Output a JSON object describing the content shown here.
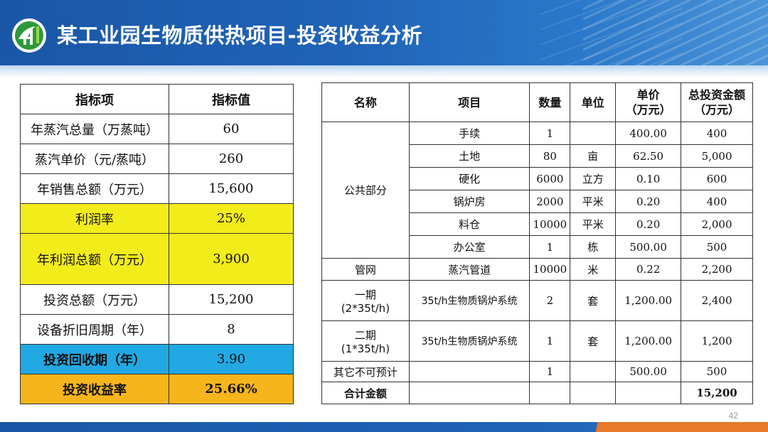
{
  "title": "某工业园生物质供热项目-投资收益分析",
  "page_number": "42",
  "colors": {
    "header_blue": "#1f63b7",
    "yellow": "#f3ec1b",
    "blue": "#22a8e3",
    "orange": "#f7b51c",
    "footer_accent": "#e8792b"
  },
  "left_table": {
    "header": [
      "指标项",
      "指标值"
    ],
    "rows": [
      [
        "年蒸汽总量（万蒸吨）",
        "60"
      ],
      [
        "蒸汽单价（元/蒸吨）",
        "260"
      ],
      [
        "年销售总额（万元）",
        "15,600"
      ],
      [
        "利润率",
        "25%"
      ],
      [
        "年利润总额（万元）",
        "3,900"
      ],
      [
        "投资总额（万元）",
        "15,200"
      ],
      [
        "设备折旧周期（年）",
        "8"
      ],
      [
        "投资回收期（年）",
        "3.90"
      ],
      [
        "投资收益率",
        "25.66%"
      ]
    ]
  },
  "right_table": {
    "header": {
      "name": "名称",
      "item": "项目",
      "qty": "数量",
      "unit": "单位",
      "price_1": "单价",
      "price_2": "（万元）",
      "total_1": "总投资金额",
      "total_2": "（万元）"
    },
    "public_group": "公共部分",
    "public_rows": [
      [
        "手续",
        "1",
        "",
        "400.00",
        "400"
      ],
      [
        "土地",
        "80",
        "亩",
        "62.50",
        "5,000"
      ],
      [
        "硬化",
        "6000",
        "立方",
        "0.10",
        "600"
      ],
      [
        "锅炉房",
        "2000",
        "平米",
        "0.20",
        "400"
      ],
      [
        "料仓",
        "10000",
        "平米",
        "0.20",
        "2,000"
      ],
      [
        "办公室",
        "1",
        "栋",
        "500.00",
        "500"
      ]
    ],
    "pipe": [
      "管网",
      "蒸汽管道",
      "10000",
      "米",
      "0.22",
      "2,200"
    ],
    "phase1": {
      "name_1": "一期",
      "name_2": "(2*35t/h)",
      "item": "35t/h生物质锅炉系统",
      "qty": "2",
      "unit": "套",
      "price": "1,200.00",
      "total": "2,400"
    },
    "phase2": {
      "name_1": "二期",
      "name_2": "(1*35t/h)",
      "item": "35t/h生物质锅炉系统",
      "qty": "1",
      "unit": "套",
      "price": "1,200.00",
      "total": "1,200"
    },
    "other": [
      "其它不可预计",
      "1",
      "500.00",
      "500"
    ],
    "sum": {
      "label": "合计金额",
      "total": "15,200"
    }
  }
}
